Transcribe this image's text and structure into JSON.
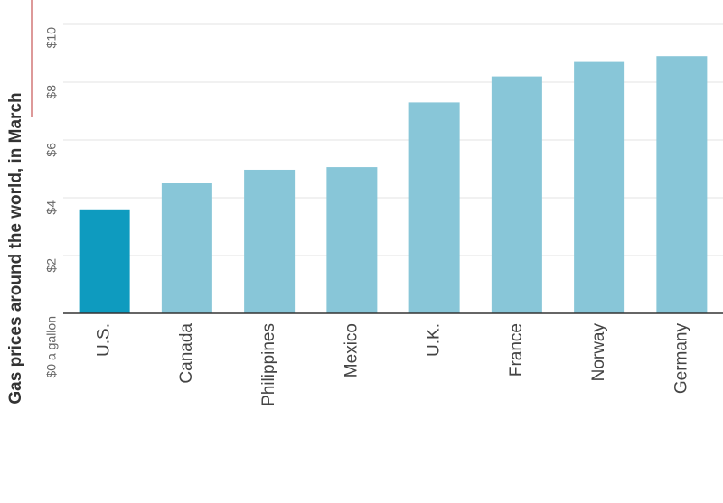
{
  "chart_data": {
    "type": "bar",
    "title": "Gas prices around the world, in March",
    "categories": [
      "U.S.",
      "Canada",
      "Philippines",
      "Mexico",
      "U.K.",
      "France",
      "Norway",
      "Germany"
    ],
    "values": [
      3.6,
      4.5,
      4.97,
      5.06,
      7.3,
      8.2,
      8.7,
      8.9
    ],
    "colors": [
      "#0e9bbf",
      "#88c6d8",
      "#88c6d8",
      "#88c6d8",
      "#88c6d8",
      "#88c6d8",
      "#88c6d8",
      "#88c6d8"
    ],
    "ylim": [
      0,
      10
    ],
    "yticks": [
      {
        "value": 0,
        "label": "$0 a gallon"
      },
      {
        "value": 2,
        "label": "$2"
      },
      {
        "value": 4,
        "label": "$4"
      },
      {
        "value": 6,
        "label": "$6"
      },
      {
        "value": 8,
        "label": "$8"
      },
      {
        "value": 10,
        "label": "$10"
      }
    ],
    "grid": true
  }
}
